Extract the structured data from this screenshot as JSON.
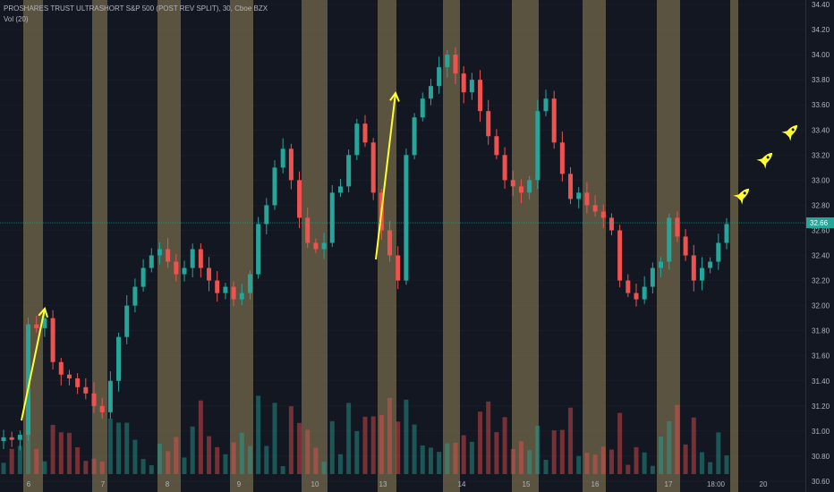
{
  "legend": {
    "symbol": "PROSHARES TRUST ULTRASHORT S&P 500 (POST REV SPLIT), 30, Cboe BZX",
    "volume": "Vol (20)"
  },
  "colors": {
    "background": "#131722",
    "up": "#26a69a",
    "down": "#ef5350",
    "session_band": "#8a7b55",
    "annotation": "#ffff33",
    "price_line": "#26a69a",
    "grid": "#1e2230"
  },
  "chart_data": {
    "type": "candlestick",
    "ylim": [
      30.55,
      34.4
    ],
    "y_ticks": [
      30.6,
      30.8,
      31.0,
      31.2,
      31.4,
      31.6,
      31.8,
      32.0,
      32.2,
      32.4,
      32.6,
      32.8,
      33.0,
      33.2,
      33.4,
      33.6,
      33.8,
      34.0,
      34.2,
      34.4
    ],
    "y_tick_labels": [
      "30.60",
      "30.80",
      "31.00",
      "31.20",
      "31.40",
      "31.60",
      "31.80",
      "32.00",
      "32.20",
      "32.40",
      "32.60",
      "32.80",
      "33.00",
      "33.20",
      "33.40",
      "33.60",
      "33.80",
      "34.00",
      "34.20",
      "34.40"
    ],
    "x_tick_labels": [
      "6",
      "7",
      "8",
      "9",
      "10",
      "13",
      "14",
      "15",
      "16",
      "17",
      "18:00",
      "20"
    ],
    "current_price": 32.66,
    "current_price_label": "32.66",
    "close_series": [
      30.95,
      30.93,
      30.97,
      31.85,
      31.82,
      31.9,
      31.55,
      31.45,
      31.42,
      31.35,
      31.3,
      31.2,
      31.15,
      31.4,
      31.75,
      32.0,
      32.15,
      32.3,
      32.4,
      32.45,
      32.35,
      32.25,
      32.3,
      32.45,
      32.3,
      32.2,
      32.1,
      32.15,
      32.05,
      32.1,
      32.25,
      32.65,
      32.8,
      33.1,
      33.25,
      33.0,
      32.7,
      32.5,
      32.45,
      32.5,
      32.9,
      32.95,
      33.2,
      33.45,
      33.3,
      32.9,
      32.6,
      32.4,
      32.2,
      33.2,
      33.5,
      33.65,
      33.75,
      33.9,
      34.0,
      33.85,
      33.7,
      33.8,
      33.55,
      33.35,
      33.2,
      33.0,
      32.95,
      32.9,
      33.0,
      33.55,
      33.65,
      33.3,
      33.05,
      32.85,
      32.9,
      32.8,
      32.75,
      32.7,
      32.6,
      32.2,
      32.1,
      32.05,
      32.15,
      32.3,
      32.35,
      32.7,
      32.55,
      32.4,
      32.2,
      32.3,
      32.35,
      32.5,
      32.65
    ],
    "session_labels": [
      "6",
      "7",
      "8",
      "9",
      "10",
      "13",
      "14",
      "15",
      "16",
      "17",
      "18:00"
    ]
  }
}
